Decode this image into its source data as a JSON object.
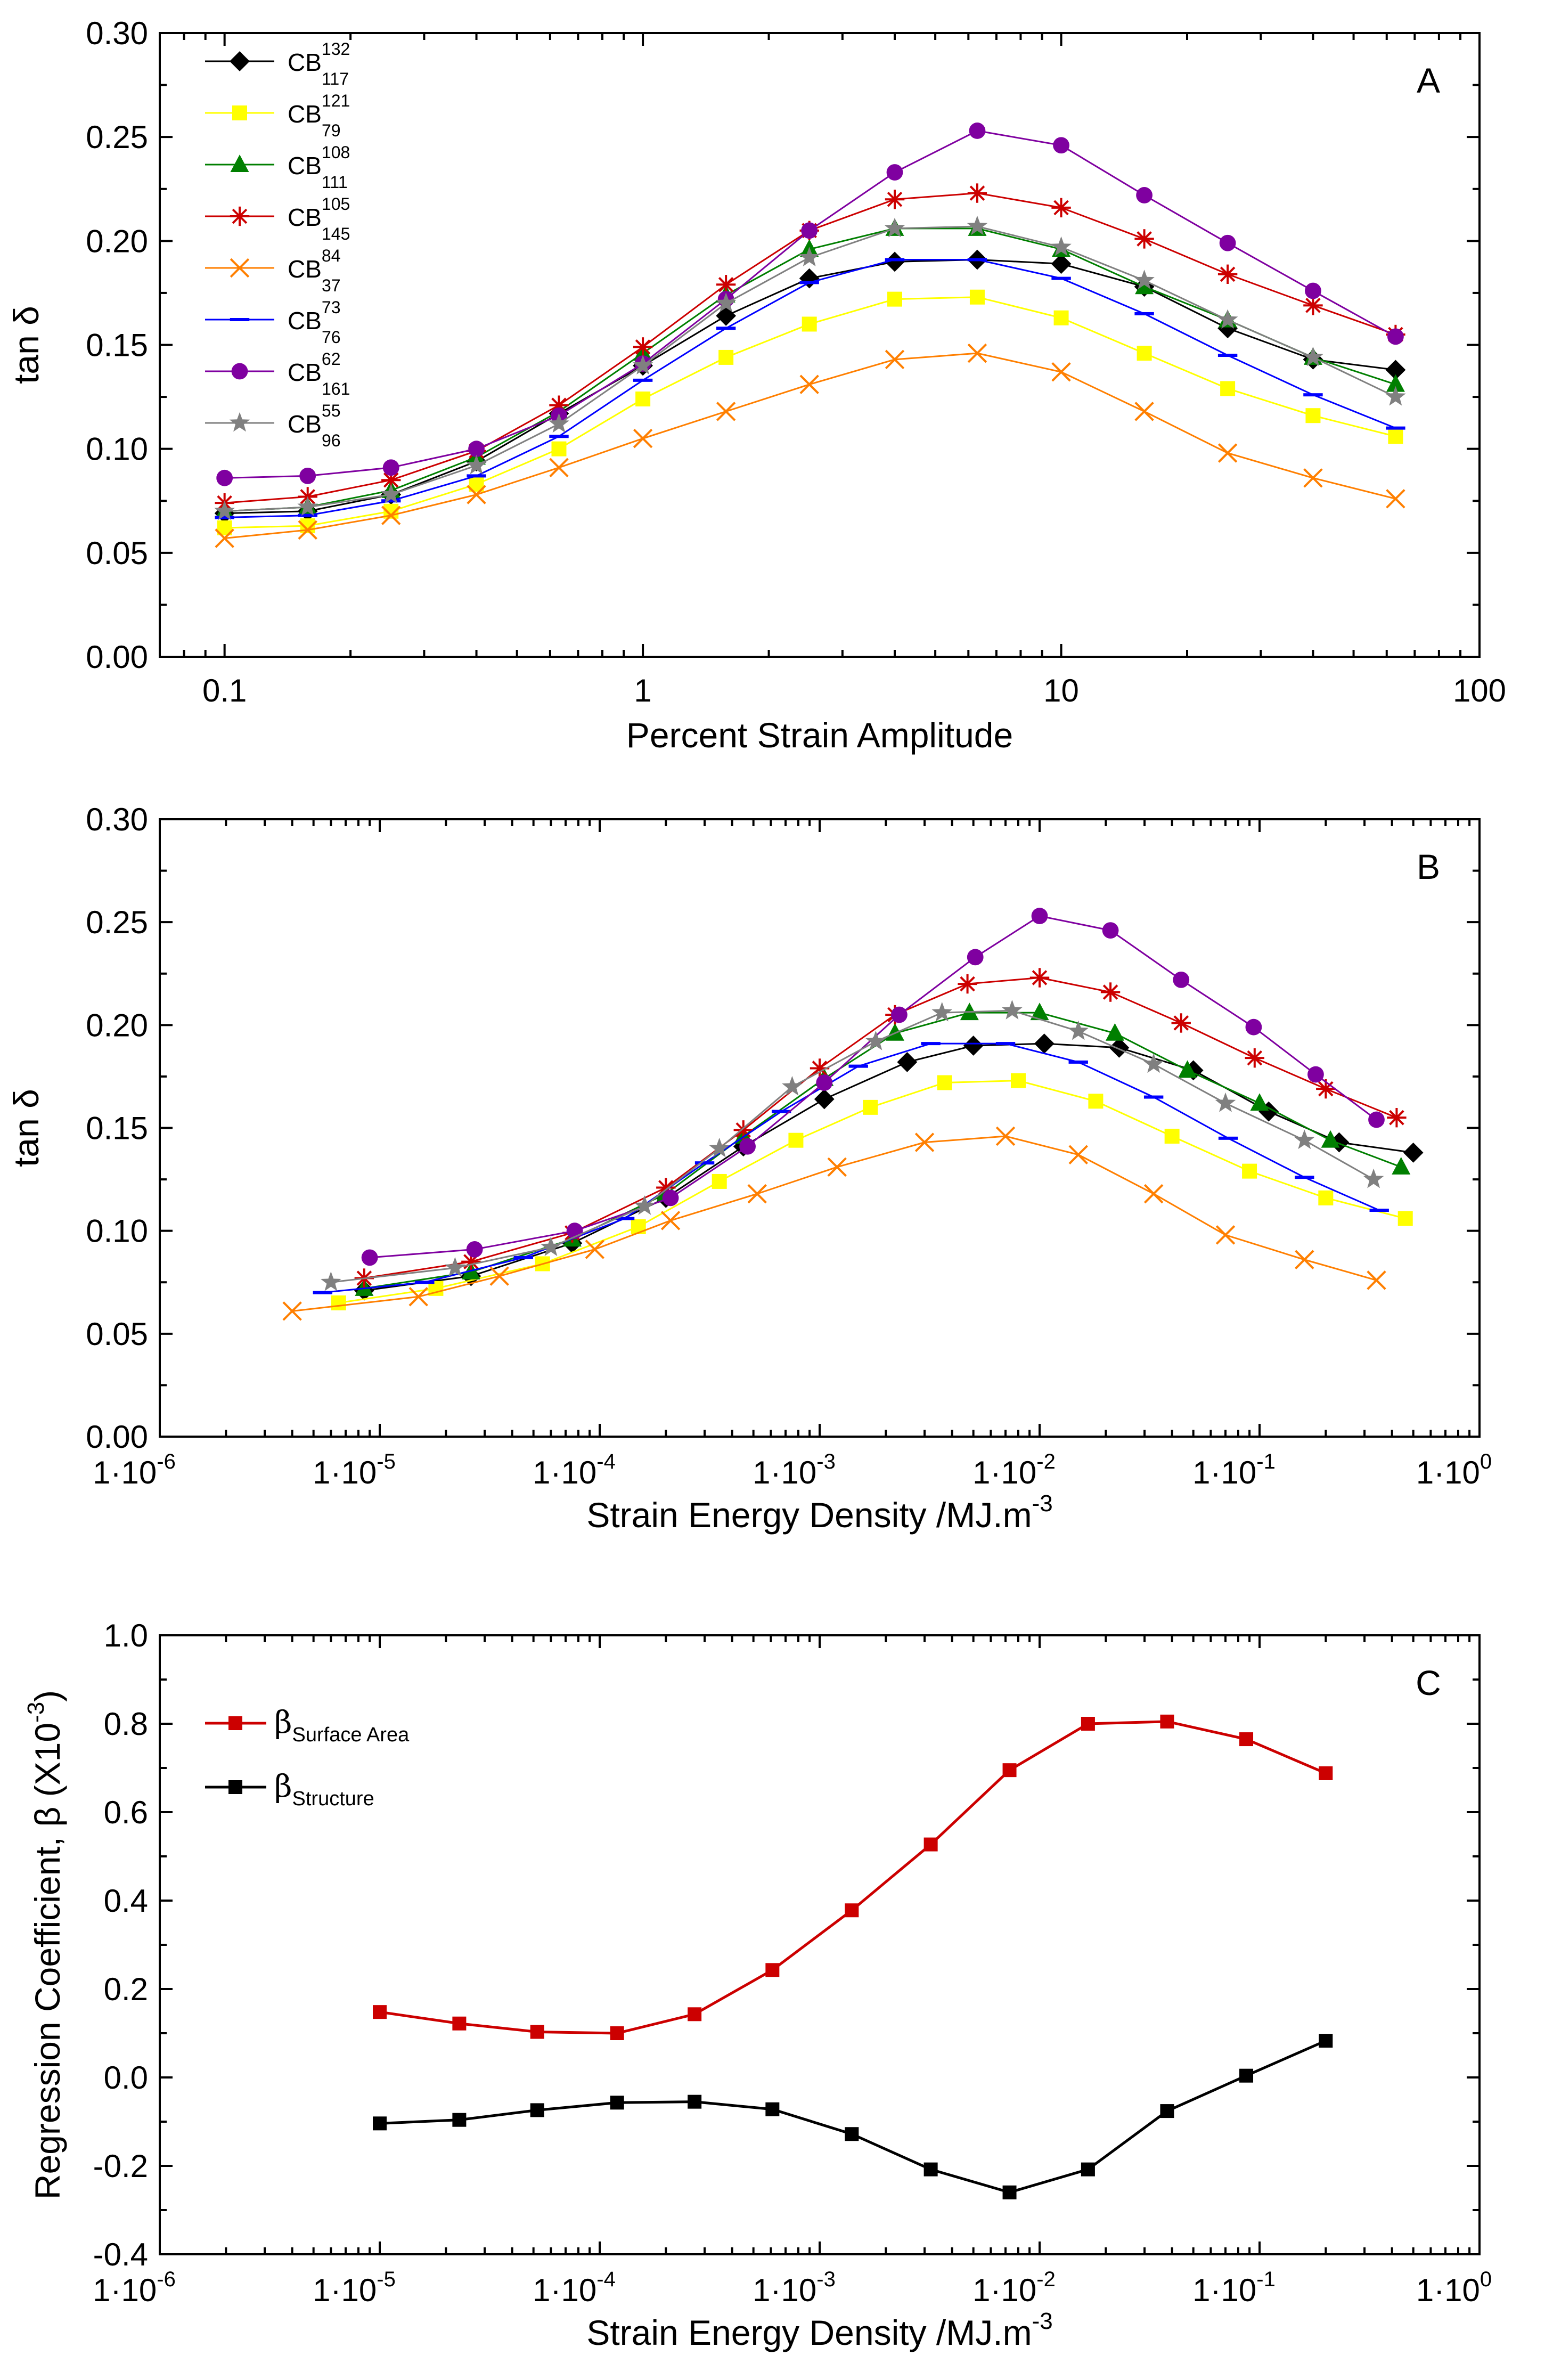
{
  "chart_data": [
    {
      "type": "line",
      "panel_label": "A",
      "xlabel": "Percent Strain Amplitude",
      "ylabel": "tan δ",
      "xscale": "log",
      "xlim": [
        0.07,
        100
      ],
      "ylim": [
        0,
        0.3
      ],
      "yticks": [
        "0.00",
        "0.05",
        "0.10",
        "0.15",
        "0.20",
        "0.25",
        "0.30"
      ],
      "xticks": [
        {
          "v": 0.1,
          "label": "0.1"
        },
        {
          "v": 1,
          "label": "1"
        },
        {
          "v": 10,
          "label": "10"
        },
        {
          "v": 100,
          "label": "100"
        }
      ],
      "legend_position": "top-left",
      "x": [
        0.1,
        0.158,
        0.25,
        0.4,
        0.63,
        1.0,
        1.58,
        2.5,
        4.0,
        6.3,
        10,
        15.8,
        25,
        40,
        63
      ],
      "series": [
        {
          "name": "CB",
          "sup": "132",
          "sub": "117",
          "color": "#000000",
          "marker": "diamond",
          "values": [
            0.069,
            0.07,
            0.078,
            0.094,
            0.117,
            0.14,
            0.164,
            0.182,
            0.19,
            0.191,
            0.189,
            0.178,
            0.158,
            0.143,
            0.138
          ]
        },
        {
          "name": "CB",
          "sup": "121",
          "sub": "79",
          "color": "#ffff00",
          "marker": "square",
          "values": [
            0.062,
            0.063,
            0.07,
            0.083,
            0.1,
            0.124,
            0.144,
            0.16,
            0.172,
            0.173,
            0.163,
            0.146,
            0.129,
            0.116,
            0.106
          ]
        },
        {
          "name": "CB",
          "sup": "108",
          "sub": "111",
          "color": "#007f00",
          "marker": "triangle",
          "values": [
            0.07,
            0.072,
            0.08,
            0.096,
            0.118,
            0.146,
            0.174,
            0.196,
            0.206,
            0.206,
            0.196,
            0.178,
            0.162,
            0.144,
            0.131
          ]
        },
        {
          "name": "CB",
          "sup": "105",
          "sub": "145",
          "color": "#cc0000",
          "marker": "asterisk",
          "values": [
            0.074,
            0.077,
            0.085,
            0.099,
            0.121,
            0.149,
            0.179,
            0.205,
            0.22,
            0.223,
            0.216,
            0.201,
            0.184,
            0.169,
            0.155
          ]
        },
        {
          "name": "CB",
          "sup": "84",
          "sub": "37",
          "color": "#ff7f00",
          "marker": "x",
          "values": [
            0.057,
            0.061,
            0.068,
            0.078,
            0.091,
            0.105,
            0.118,
            0.131,
            0.143,
            0.146,
            0.137,
            0.118,
            0.098,
            0.086,
            0.076
          ]
        },
        {
          "name": "CB",
          "sup": "73",
          "sub": "76",
          "color": "#0000ff",
          "marker": "dash",
          "values": [
            0.067,
            0.068,
            0.075,
            0.087,
            0.106,
            0.133,
            0.158,
            0.18,
            0.191,
            0.191,
            0.182,
            0.165,
            0.145,
            0.126,
            0.11
          ]
        },
        {
          "name": "CB",
          "sup": "62",
          "sub": "161",
          "color": "#7f00a0",
          "marker": "circle",
          "values": [
            0.086,
            0.087,
            0.091,
            0.1,
            0.116,
            0.141,
            0.172,
            0.205,
            0.233,
            0.253,
            0.246,
            0.222,
            0.199,
            0.176,
            0.154
          ]
        },
        {
          "name": "CB",
          "sup": "55",
          "sub": "96",
          "color": "#808080",
          "marker": "star",
          "values": [
            0.07,
            0.072,
            0.078,
            0.092,
            0.112,
            0.14,
            0.17,
            0.192,
            0.206,
            0.207,
            0.197,
            0.181,
            0.162,
            0.144,
            0.125
          ]
        }
      ]
    },
    {
      "type": "line",
      "panel_label": "B",
      "xlabel": "Strain Energy Density /MJ.m",
      "xlabel_sup": "-3",
      "ylabel": "tan δ",
      "xscale": "log",
      "xlim": [
        1e-06,
        1
      ],
      "ylim": [
        0,
        0.3
      ],
      "yticks": [
        "0.00",
        "0.05",
        "0.10",
        "0.15",
        "0.20",
        "0.25",
        "0.30"
      ],
      "xticks": [
        {
          "v": 1e-06,
          "base": "1·10",
          "exp": "-6"
        },
        {
          "v": 1e-05,
          "base": "1·10",
          "exp": "-5"
        },
        {
          "v": 0.0001,
          "base": "1·10",
          "exp": "-4"
        },
        {
          "v": 0.001,
          "base": "1·10",
          "exp": "-3"
        },
        {
          "v": 0.01,
          "base": "1·10",
          "exp": "-2"
        },
        {
          "v": 0.1,
          "base": "1·10",
          "exp": "-1"
        },
        {
          "v": 1,
          "base": "1·10",
          "exp": "0"
        }
      ],
      "series": [
        {
          "color": "#000000",
          "marker": "diamond",
          "x": [
            8.5e-06,
            2.6e-05,
            7.5e-05,
            0.0002,
            0.00045,
            0.00105,
            0.0025,
            0.005,
            0.0105,
            0.023,
            0.05,
            0.11,
            0.23,
            0.5
          ],
          "values": [
            0.071,
            0.078,
            0.094,
            0.116,
            0.141,
            0.164,
            0.182,
            0.19,
            0.191,
            0.189,
            0.178,
            0.158,
            0.143,
            0.138
          ]
        },
        {
          "color": "#ffff00",
          "marker": "square",
          "x": [
            6.5e-06,
            1.8e-05,
            5.5e-05,
            0.00015,
            0.00035,
            0.00078,
            0.0017,
            0.0037,
            0.008,
            0.018,
            0.04,
            0.09,
            0.2,
            0.46
          ],
          "values": [
            0.065,
            0.072,
            0.084,
            0.102,
            0.124,
            0.144,
            0.16,
            0.172,
            0.173,
            0.163,
            0.146,
            0.129,
            0.116,
            0.106
          ]
        },
        {
          "color": "#007f00",
          "marker": "triangle",
          "x": [
            8.5e-06,
            2.6e-05,
            7.5e-05,
            0.0002,
            0.00045,
            0.00105,
            0.0022,
            0.0048,
            0.01,
            0.022,
            0.047,
            0.1,
            0.21,
            0.44
          ],
          "values": [
            0.072,
            0.08,
            0.096,
            0.118,
            0.146,
            0.174,
            0.196,
            0.206,
            0.206,
            0.196,
            0.178,
            0.162,
            0.144,
            0.131
          ]
        },
        {
          "color": "#cc0000",
          "marker": "asterisk",
          "x": [
            8.5e-06,
            2.6e-05,
            7.5e-05,
            0.0002,
            0.00045,
            0.001,
            0.0022,
            0.0047,
            0.01,
            0.021,
            0.044,
            0.095,
            0.2,
            0.42
          ],
          "values": [
            0.077,
            0.085,
            0.099,
            0.121,
            0.149,
            0.179,
            0.205,
            0.22,
            0.223,
            0.216,
            0.201,
            0.184,
            0.169,
            0.155
          ]
        },
        {
          "color": "#ff7f00",
          "marker": "x",
          "x": [
            4e-06,
            1.5e-05,
            3.5e-05,
            9.5e-05,
            0.00021,
            0.00052,
            0.0012,
            0.003,
            0.007,
            0.015,
            0.033,
            0.07,
            0.16,
            0.34
          ],
          "values": [
            0.061,
            0.068,
            0.078,
            0.091,
            0.105,
            0.118,
            0.131,
            0.143,
            0.146,
            0.137,
            0.118,
            0.098,
            0.086,
            0.076
          ]
        },
        {
          "color": "#0000ff",
          "marker": "dash",
          "x": [
            5.5e-06,
            1.6e-05,
            4.5e-05,
            0.00013,
            0.0003,
            0.00067,
            0.0015,
            0.0032,
            0.007,
            0.015,
            0.033,
            0.072,
            0.16,
            0.35
          ],
          "values": [
            0.07,
            0.075,
            0.087,
            0.106,
            0.133,
            0.158,
            0.18,
            0.191,
            0.191,
            0.182,
            0.165,
            0.145,
            0.126,
            0.11
          ]
        },
        {
          "color": "#7f00a0",
          "marker": "circle",
          "x": [
            9e-06,
            2.7e-05,
            7.7e-05,
            0.00021,
            0.00047,
            0.00105,
            0.0023,
            0.0051,
            0.01,
            0.021,
            0.044,
            0.094,
            0.18,
            0.34
          ],
          "values": [
            0.087,
            0.091,
            0.1,
            0.116,
            0.141,
            0.172,
            0.205,
            0.233,
            0.253,
            0.246,
            0.222,
            0.199,
            0.176,
            0.154
          ]
        },
        {
          "color": "#808080",
          "marker": "star",
          "x": [
            6e-06,
            2.2e-05,
            6e-05,
            0.00016,
            0.00035,
            0.00075,
            0.0018,
            0.0036,
            0.0075,
            0.015,
            0.033,
            0.07,
            0.16,
            0.33
          ],
          "values": [
            0.075,
            0.082,
            0.092,
            0.112,
            0.14,
            0.17,
            0.192,
            0.206,
            0.207,
            0.197,
            0.181,
            0.162,
            0.144,
            0.125
          ]
        }
      ]
    },
    {
      "type": "line",
      "panel_label": "C",
      "xlabel": "Strain Energy Density /MJ.m",
      "xlabel_sup": "-3",
      "ylabel": "Regression Coefficient, β (X10",
      "ylabel_sup": "-3",
      "ylabel_end": ")",
      "xscale": "log",
      "xlim": [
        1e-06,
        1
      ],
      "ylim": [
        -0.4,
        1.0
      ],
      "yticks": [
        "-0.4",
        "-0.2",
        "0.0",
        "0.2",
        "0.4",
        "0.6",
        "0.8",
        "1.0"
      ],
      "xticks": [
        {
          "v": 1e-06,
          "base": "1·10",
          "exp": "-6"
        },
        {
          "v": 1e-05,
          "base": "1·10",
          "exp": "-5"
        },
        {
          "v": 0.0001,
          "base": "1·10",
          "exp": "-4"
        },
        {
          "v": 0.001,
          "base": "1·10",
          "exp": "-3"
        },
        {
          "v": 0.01,
          "base": "1·10",
          "exp": "-2"
        },
        {
          "v": 0.1,
          "base": "1·10",
          "exp": "-1"
        },
        {
          "v": 1,
          "base": "1·10",
          "exp": "0"
        }
      ],
      "legend_position": "top-left",
      "x": [
        1e-05,
        2.3e-05,
        5.2e-05,
        0.00012,
        0.00027,
        0.00061,
        0.0014,
        0.0032,
        0.0073,
        0.0166,
        0.038,
        0.087,
        0.2
      ],
      "series": [
        {
          "name": "β",
          "sub": "Surface Area",
          "color": "#cc0000",
          "marker": "square",
          "values": [
            0.148,
            0.122,
            0.103,
            0.1,
            0.143,
            0.243,
            0.378,
            0.527,
            0.695,
            0.8,
            0.805,
            0.765,
            0.688
          ]
        },
        {
          "name": "β",
          "sub": "Structure",
          "color": "#000000",
          "marker": "square",
          "values": [
            -0.104,
            -0.096,
            -0.074,
            -0.057,
            -0.055,
            -0.072,
            -0.128,
            -0.208,
            -0.26,
            -0.208,
            -0.076,
            0.004,
            0.083
          ]
        }
      ]
    }
  ]
}
